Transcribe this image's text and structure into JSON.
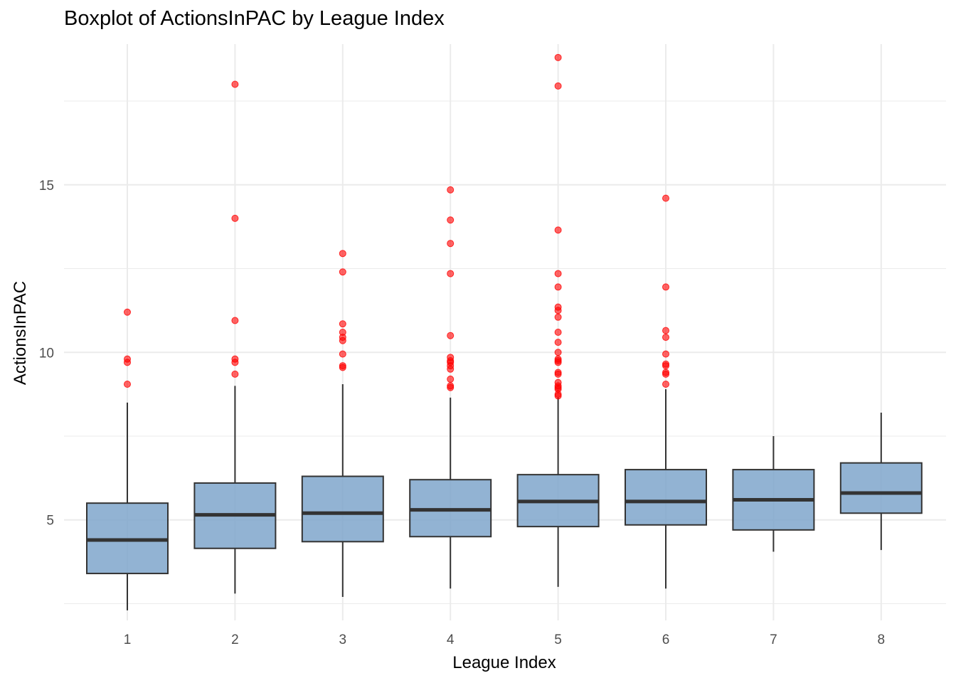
{
  "chart_data": {
    "type": "boxplot",
    "title": "Boxplot of ActionsInPAC by League Index",
    "xlabel": "League Index",
    "ylabel": "ActionsInPAC",
    "categories": [
      "1",
      "2",
      "3",
      "4",
      "5",
      "6",
      "7",
      "8"
    ],
    "ylim": [
      2.0,
      19.2
    ],
    "y_ticks": [
      5,
      10,
      15
    ],
    "y_tick_labels": [
      "5",
      "10",
      "15"
    ],
    "grid": true,
    "colors": {
      "box_fill": "#7fa6cb",
      "box_stroke": "#333333",
      "median": "#333333",
      "outlier": "#ff0000",
      "grid": "#ebebeb"
    },
    "boxes": [
      {
        "category": "1",
        "whisker_low": 2.3,
        "q1": 3.4,
        "median": 4.4,
        "q3": 5.5,
        "whisker_high": 8.5,
        "outliers": [
          11.2,
          9.8,
          9.7,
          9.05
        ]
      },
      {
        "category": "2",
        "whisker_low": 2.8,
        "q1": 4.15,
        "median": 5.15,
        "q3": 6.1,
        "whisker_high": 9.0,
        "outliers": [
          18.0,
          14.0,
          10.95,
          9.8,
          9.7,
          9.35
        ]
      },
      {
        "category": "3",
        "whisker_low": 2.7,
        "q1": 4.35,
        "median": 5.2,
        "q3": 6.3,
        "whisker_high": 9.05,
        "outliers": [
          12.95,
          12.4,
          10.85,
          10.6,
          10.45,
          10.35,
          9.95,
          9.6,
          9.55
        ]
      },
      {
        "category": "4",
        "whisker_low": 2.95,
        "q1": 4.5,
        "median": 5.3,
        "q3": 6.2,
        "whisker_high": 8.65,
        "outliers": [
          14.85,
          13.95,
          13.25,
          12.35,
          10.5,
          9.85,
          9.75,
          9.7,
          9.6,
          9.5,
          9.2,
          9.0,
          8.95
        ]
      },
      {
        "category": "5",
        "whisker_low": 3.0,
        "q1": 4.8,
        "median": 5.55,
        "q3": 6.35,
        "whisker_high": 8.65,
        "outliers": [
          18.8,
          17.95,
          13.65,
          12.35,
          11.95,
          11.35,
          11.25,
          11.05,
          10.6,
          10.3,
          10.0,
          9.8,
          9.75,
          9.7,
          9.4,
          9.35,
          9.1,
          9.0,
          8.95,
          8.9,
          8.75,
          8.7
        ]
      },
      {
        "category": "6",
        "whisker_low": 2.95,
        "q1": 4.85,
        "median": 5.55,
        "q3": 6.5,
        "whisker_high": 8.9,
        "outliers": [
          14.6,
          11.95,
          10.65,
          10.45,
          9.95,
          9.65,
          9.6,
          9.4,
          9.35,
          9.05
        ]
      },
      {
        "category": "7",
        "whisker_low": 4.05,
        "q1": 4.7,
        "median": 5.6,
        "q3": 6.5,
        "whisker_high": 7.5
      },
      {
        "category": "8",
        "whisker_low": 4.1,
        "q1": 5.2,
        "median": 5.8,
        "q3": 6.7,
        "whisker_high": 8.2
      }
    ]
  }
}
